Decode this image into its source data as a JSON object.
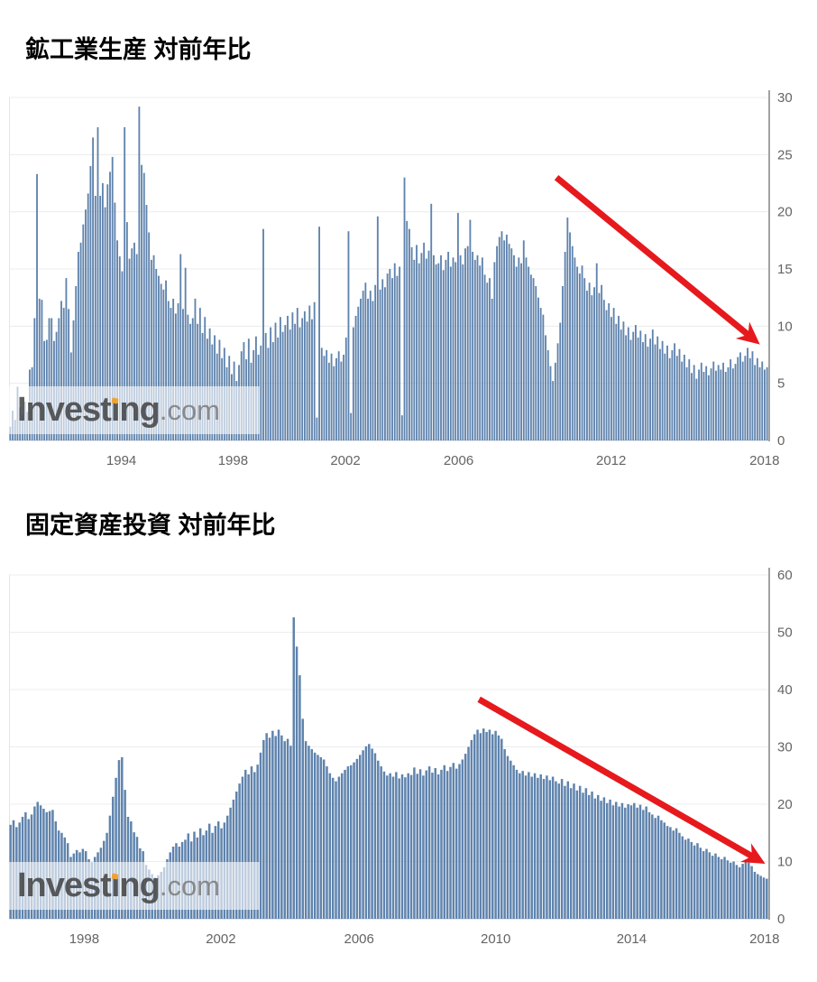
{
  "colors": {
    "bar": "#5f83ad",
    "grid": "#ececec",
    "baseline": "#c9d0da",
    "plot_left_border": "#e4e4e4",
    "axis": "#a2a2a2",
    "tick_label": "#646464",
    "arrow": "#e6191d",
    "title": "#000000",
    "watermark_orange": "#f0a32f"
  },
  "watermark": {
    "prefix": "Invest",
    "i_char": "ı",
    "suffix_after_i": "ng",
    "domain": ".com"
  },
  "chart_data": [
    {
      "type": "bar",
      "title": "鉱工業生産 対前年比",
      "xlabel": "",
      "ylabel": "",
      "ylim": [
        0,
        30
      ],
      "yticks": [
        0,
        5,
        10,
        15,
        20,
        25,
        30
      ],
      "grid": true,
      "legend": false,
      "bar_color": "#5f83ad",
      "xticks": [
        {
          "label": "1994",
          "pos": 0.148
        },
        {
          "label": "1998",
          "pos": 0.295
        },
        {
          "label": "2002",
          "pos": 0.443
        },
        {
          "label": "2006",
          "pos": 0.592
        },
        {
          "label": "2012",
          "pos": 0.793
        },
        {
          "label": "2018",
          "pos": 0.995
        }
      ],
      "trend_arrow": {
        "x_frac_start": 0.721,
        "value_start": 23.0,
        "x_frac_end": 0.989,
        "value_end": 8.4
      },
      "values": [
        1.2,
        2.6,
        1.8,
        4.7,
        2.9,
        2.2,
        3.4,
        2.5,
        6.2,
        6.4,
        10.7,
        23.3,
        12.4,
        12.3,
        8.7,
        8.8,
        10.7,
        10.7,
        8.7,
        9.5,
        10.7,
        12.2,
        11.6,
        14.2,
        11.5,
        7.7,
        10.5,
        13.5,
        16.5,
        17.3,
        18.9,
        20.2,
        21.6,
        24.0,
        26.5,
        21.4,
        27.4,
        21.4,
        22.5,
        20.4,
        22.4,
        23.5,
        24.8,
        20.8,
        17.5,
        16.1,
        14.8,
        27.4,
        19.1,
        15.9,
        16.8,
        17.3,
        16.3,
        29.2,
        24.1,
        23.4,
        20.6,
        18.2,
        15.8,
        16.2,
        15.0,
        14.4,
        13.7,
        13.2,
        14.0,
        12.2,
        11.6,
        12.4,
        11.1,
        12.0,
        16.3,
        11.5,
        15.1,
        11.0,
        10.2,
        10.7,
        12.4,
        10.2,
        11.6,
        9.4,
        10.8,
        8.9,
        9.8,
        8.4,
        9.2,
        7.6,
        8.8,
        7.2,
        8.1,
        6.4,
        7.4,
        5.8,
        6.9,
        5.2,
        6.6,
        7.8,
        8.6,
        7.1,
        8.9,
        6.8,
        7.9,
        9.1,
        7.5,
        8.3,
        18.5,
        9.4,
        8.1,
        9.9,
        8.6,
        10.3,
        9.0,
        10.8,
        9.5,
        10.1,
        10.9,
        9.7,
        11.2,
        10.2,
        11.6,
        9.9,
        10.7,
        11.3,
        10.4,
        11.8,
        10.6,
        12.1,
        2.0,
        18.7,
        8.1,
        7.4,
        7.9,
        6.8,
        7.6,
        6.5,
        7.2,
        7.8,
        6.9,
        7.5,
        9.0,
        18.3,
        2.4,
        9.9,
        10.9,
        11.7,
        12.4,
        13.1,
        13.8,
        12.4,
        13.1,
        12.2,
        13.6,
        19.6,
        13.2,
        14.1,
        13.4,
        14.6,
        15.0,
        14.2,
        15.5,
        14.4,
        15.2,
        2.2,
        23.0,
        19.2,
        18.5,
        16.9,
        15.8,
        17.1,
        15.5,
        16.4,
        17.3,
        15.9,
        16.6,
        20.7,
        16.2,
        15.4,
        15.5,
        16.2,
        14.9,
        15.8,
        16.5,
        15.2,
        16.0,
        15.6,
        19.9,
        16.2,
        15.4,
        16.8,
        17.0,
        19.3,
        16.5,
        15.8,
        16.2,
        15.3,
        16.0,
        14.5,
        13.8,
        14.2,
        12.4,
        15.6,
        17.0,
        17.8,
        18.3,
        17.5,
        18.0,
        17.2,
        16.8,
        16.2,
        15.2,
        16.0,
        15.5,
        17.5,
        16.0,
        15.2,
        14.5,
        14.2,
        13.5,
        12.5,
        11.6,
        11.0,
        9.2,
        7.9,
        6.5,
        5.2,
        6.8,
        8.5,
        10.3,
        13.5,
        16.5,
        19.5,
        18.2,
        17.0,
        16.0,
        15.2,
        14.6,
        15.3,
        14.2,
        13.1,
        13.8,
        12.7,
        13.4,
        15.5,
        12.9,
        13.6,
        12.3,
        11.4,
        12.0,
        10.8,
        11.6,
        10.2,
        10.9,
        9.7,
        10.4,
        9.2,
        9.9,
        8.8,
        9.5,
        10.1,
        9.0,
        9.6,
        8.6,
        9.3,
        8.2,
        8.9,
        9.7,
        8.4,
        9.1,
        8.0,
        8.7,
        7.6,
        8.3,
        7.2,
        7.9,
        8.5,
        7.4,
        8.0,
        6.9,
        7.5,
        6.4,
        7.1,
        5.9,
        6.6,
        5.4,
        6.2,
        6.8,
        6.0,
        6.5,
        5.7,
        6.3,
        6.9,
        6.1,
        6.6,
        6.2,
        6.8,
        6.0,
        6.4,
        7.1,
        6.3,
        6.7,
        7.3,
        7.7,
        6.9,
        7.4,
        8.1,
        7.2,
        7.8,
        6.6,
        7.2,
        6.4,
        6.9,
        6.2,
        6.4
      ]
    },
    {
      "type": "bar",
      "title": "固定資産投資 対前年比",
      "xlabel": "",
      "ylabel": "",
      "ylim": [
        0,
        60
      ],
      "yticks": [
        0,
        10,
        20,
        30,
        40,
        50,
        60
      ],
      "grid": true,
      "legend": false,
      "bar_color": "#5f83ad",
      "xticks": [
        {
          "label": "1998",
          "pos": 0.099
        },
        {
          "label": "2002",
          "pos": 0.279
        },
        {
          "label": "2006",
          "pos": 0.461
        },
        {
          "label": "2010",
          "pos": 0.641
        },
        {
          "label": "2014",
          "pos": 0.82
        },
        {
          "label": "2018",
          "pos": 0.995
        }
      ],
      "trend_arrow": {
        "x_frac_start": 0.619,
        "value_start": 38.3,
        "x_frac_end": 0.996,
        "value_end": 9.6
      },
      "values": [
        16.4,
        17.2,
        16.0,
        16.8,
        17.8,
        18.6,
        17.4,
        18.2,
        19.6,
        20.4,
        19.8,
        19.2,
        18.6,
        18.8,
        19.0,
        17.0,
        15.4,
        15.0,
        14.2,
        13.2,
        10.8,
        11.4,
        12.0,
        11.6,
        12.2,
        11.8,
        10.4,
        9.9,
        10.8,
        11.6,
        12.4,
        13.6,
        15.0,
        18.0,
        21.3,
        24.6,
        27.7,
        28.2,
        22.5,
        17.8,
        17.0,
        15.1,
        14.3,
        12.3,
        11.8,
        9.4,
        8.6,
        7.8,
        7.2,
        7.6,
        8.2,
        9.0,
        10.4,
        11.6,
        12.6,
        13.2,
        12.6,
        13.4,
        13.8,
        14.9,
        13.5,
        15.2,
        14.2,
        15.8,
        14.6,
        15.4,
        16.6,
        15.0,
        16.2,
        17.0,
        15.8,
        16.8,
        18.0,
        19.4,
        20.8,
        22.2,
        23.6,
        24.8,
        26.0,
        25.2,
        26.6,
        25.6,
        26.9,
        29.0,
        31.2,
        32.4,
        31.6,
        32.8,
        31.9,
        33.0,
        32.0,
        31.0,
        31.4,
        30.2,
        52.6,
        47.5,
        42.5,
        34.9,
        31.0,
        30.2,
        29.6,
        29.0,
        28.6,
        28.2,
        27.8,
        26.6,
        25.4,
        24.6,
        24.0,
        24.8,
        25.4,
        26.0,
        26.6,
        26.8,
        27.3,
        27.9,
        28.6,
        29.4,
        30.1,
        30.5,
        29.7,
        28.9,
        27.6,
        26.6,
        25.7,
        25.0,
        25.4,
        24.8,
        25.6,
        24.5,
        25.2,
        24.7,
        25.4,
        25.1,
        26.4,
        25.3,
        26.1,
        25.0,
        25.9,
        26.6,
        25.5,
        26.3,
        25.2,
        26.0,
        26.8,
        25.8,
        26.5,
        27.2,
        26.2,
        27.0,
        27.8,
        28.8,
        30.0,
        31.2,
        32.2,
        33.0,
        32.4,
        33.2,
        32.6,
        33.0,
        32.2,
        32.8,
        32.0,
        31.4,
        29.6,
        28.4,
        27.6,
        26.8,
        26.0,
        25.4,
        25.8,
        25.0,
        25.6,
        24.8,
        25.4,
        24.6,
        25.2,
        24.4,
        25.0,
        24.2,
        24.8,
        24.0,
        23.6,
        24.4,
        23.2,
        24.0,
        22.8,
        23.6,
        22.4,
        23.2,
        22.0,
        22.8,
        21.6,
        22.2,
        21.0,
        21.6,
        20.6,
        21.2,
        20.2,
        20.8,
        19.8,
        20.4,
        19.6,
        20.2,
        19.4,
        20.0,
        19.8,
        20.2,
        19.4,
        19.9,
        19.0,
        19.6,
        18.6,
        18.2,
        17.6,
        18.0,
        17.2,
        16.8,
        16.2,
        16.0,
        15.4,
        15.8,
        15.0,
        14.4,
        13.8,
        14.0,
        13.4,
        12.8,
        13.2,
        12.4,
        11.8,
        12.2,
        11.6,
        11.0,
        11.4,
        10.8,
        10.4,
        10.8,
        10.2,
        9.8,
        10.0,
        9.4,
        9.0,
        9.6,
        10.2,
        9.8,
        9.2,
        8.2,
        7.8,
        7.5,
        7.2,
        7.0
      ]
    }
  ]
}
